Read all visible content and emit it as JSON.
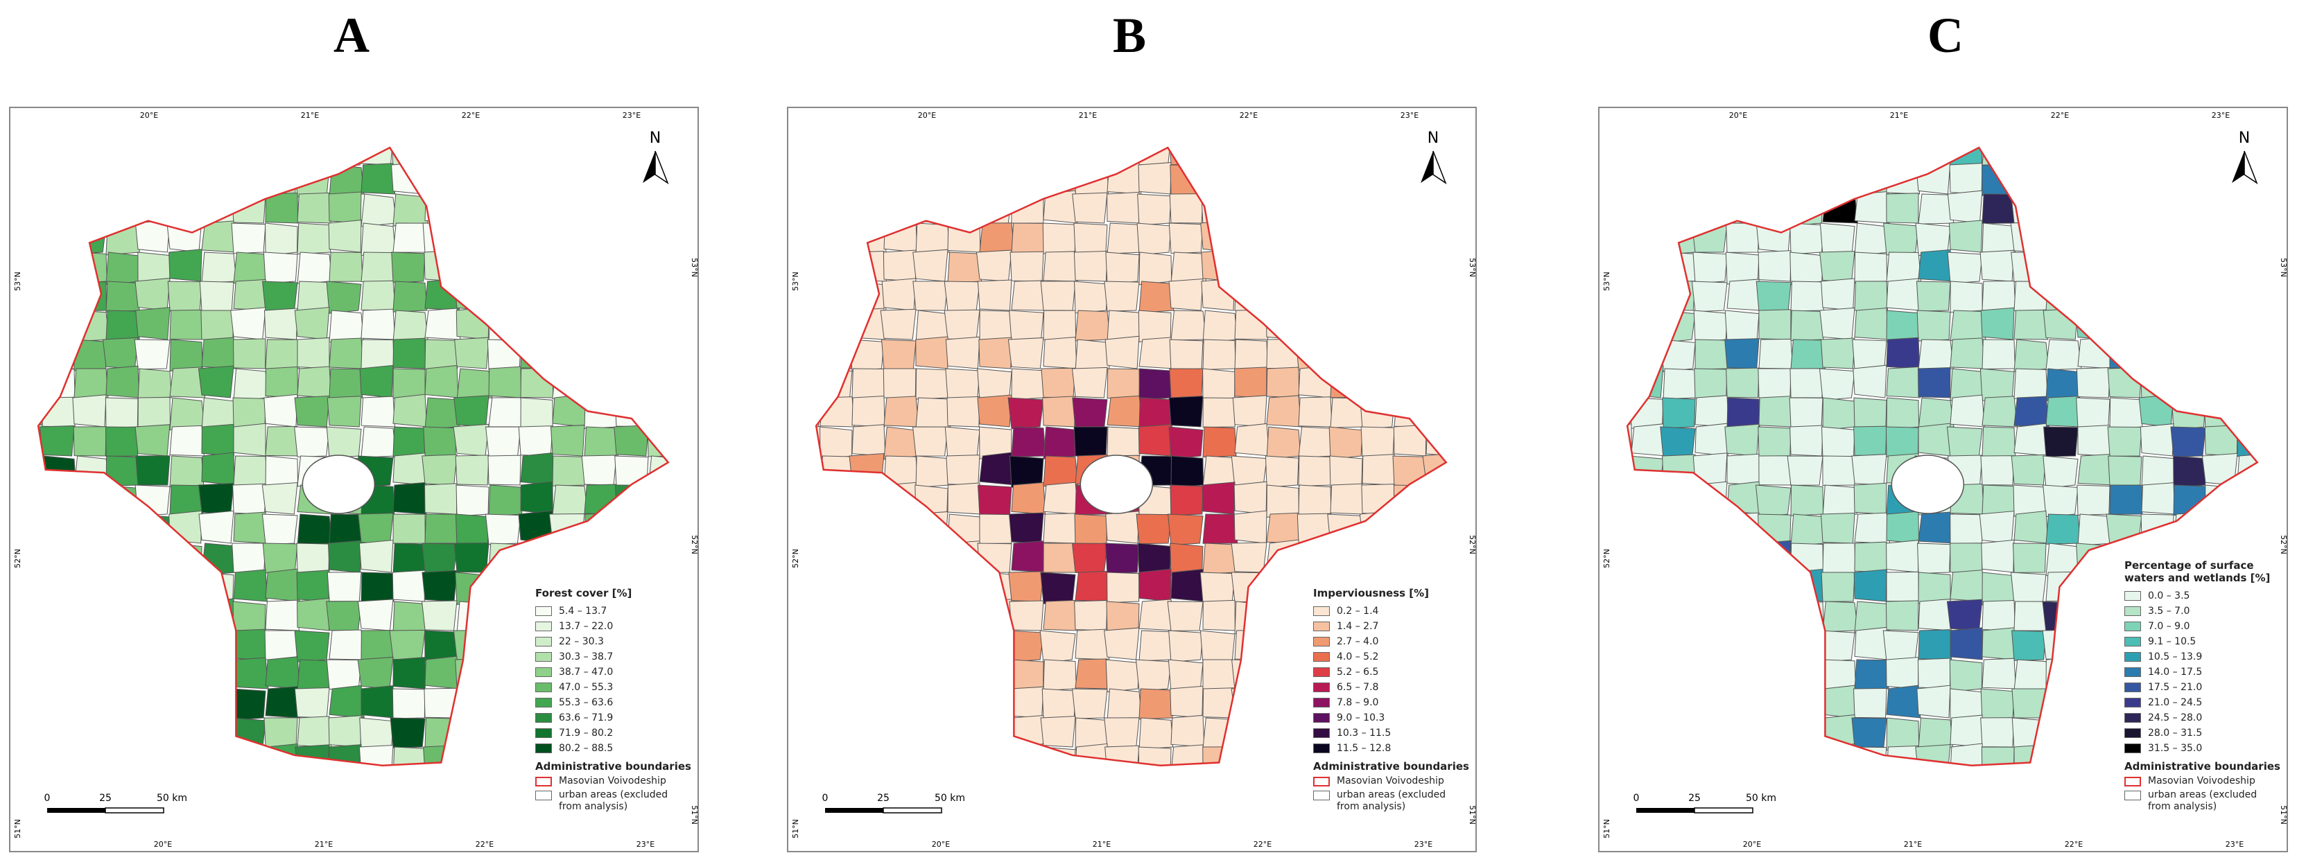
{
  "panels": [
    {
      "label": "A",
      "legend_title": "Forest cover [%]",
      "classes": [
        {
          "label": "5.4 – 13.7",
          "color": "#f7fcf5"
        },
        {
          "label": "13.7 – 22.0",
          "color": "#e5f5e0"
        },
        {
          "label": "22 – 30.3",
          "color": "#d0edca"
        },
        {
          "label": "30.3 – 38.7",
          "color": "#b2e0ab"
        },
        {
          "label": "38.7 – 47.0",
          "color": "#8fd08a"
        },
        {
          "label": "47.0 – 55.3",
          "color": "#6abc6b"
        },
        {
          "label": "55.3 – 63.6",
          "color": "#43a651"
        },
        {
          "label": "63.6 – 71.9",
          "color": "#2a8d41"
        },
        {
          "label": "71.9 – 80.2",
          "color": "#11742f"
        },
        {
          "label": "80.2 – 88.5",
          "color": "#00501f"
        }
      ]
    },
    {
      "label": "B",
      "legend_title": "Imperviousness [%]",
      "classes": [
        {
          "label": "0.2 – 1.4",
          "color": "#fbe6d4"
        },
        {
          "label": "1.4 – 2.7",
          "color": "#f6c1a0"
        },
        {
          "label": "2.7 – 4.0",
          "color": "#f09a72"
        },
        {
          "label": "4.0 – 5.2",
          "color": "#ea6f4f"
        },
        {
          "label": "5.2 – 6.5",
          "color": "#dc3d46"
        },
        {
          "label": "6.5 – 7.8",
          "color": "#b81a54"
        },
        {
          "label": "7.8 – 9.0",
          "color": "#8c1361"
        },
        {
          "label": "9.0 – 10.3",
          "color": "#5e1160"
        },
        {
          "label": "10.3 – 11.5",
          "color": "#330d43"
        },
        {
          "label": "11.5 – 12.8",
          "color": "#0b0620"
        }
      ]
    },
    {
      "label": "C",
      "legend_title": "Percentage of surface waters and wetlands [%]",
      "classes": [
        {
          "label": "0.0 – 3.5",
          "color": "#e6f6ec"
        },
        {
          "label": "3.5 – 7.0",
          "color": "#b5e4c6"
        },
        {
          "label": "7.0 – 9.0",
          "color": "#7dd3b5"
        },
        {
          "label": "9.1 – 10.5",
          "color": "#4bbdb4"
        },
        {
          "label": "10.5 – 13.9",
          "color": "#2e9fb2"
        },
        {
          "label": "14.0 – 17.5",
          "color": "#2c7cb0"
        },
        {
          "label": "17.5 – 21.0",
          "color": "#3557a2"
        },
        {
          "label": "21.0 – 24.5",
          "color": "#3a3a8c"
        },
        {
          "label": "24.5 – 28.0",
          "color": "#2e2558"
        },
        {
          "label": "28.0 – 31.5",
          "color": "#1a1530"
        },
        {
          "label": "31.5 – 35.0",
          "color": "#000000"
        }
      ]
    }
  ],
  "legend_common": {
    "title": "Administrative boundaries",
    "voivodeship": "Masovian Voivodeship",
    "urban": "urban areas (excluded from analysis)"
  },
  "scale_bar": [
    "0",
    "25",
    "50 km"
  ],
  "north": "N",
  "graticule": {
    "top": [
      "20°E",
      "21°E",
      "22°E",
      "23°E"
    ],
    "bottom": [
      "20°E",
      "21°E",
      "22°E",
      "23°E"
    ],
    "left": [
      "53°N",
      "52°N",
      "51°N"
    ],
    "right": [
      "53°N",
      "52°N",
      "51°N"
    ]
  }
}
